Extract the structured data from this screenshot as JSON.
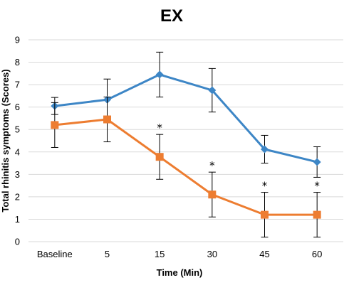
{
  "chart_data": {
    "type": "line",
    "title": "EX",
    "xlabel": "Time (Min)",
    "ylabel": "Total rhinitis symptoms (Scores)",
    "categories": [
      "Baseline",
      "5",
      "15",
      "30",
      "45",
      "60"
    ],
    "ylim": [
      0,
      9
    ],
    "yticks": [
      0,
      1,
      2,
      3,
      4,
      5,
      6,
      7,
      8,
      9
    ],
    "grid": true,
    "legend": "none",
    "series": [
      {
        "color": "#3d86c6",
        "marker": "diamond",
        "values": [
          6.05,
          6.33,
          7.45,
          6.75,
          4.12,
          3.55
        ],
        "error": [
          0.38,
          0.92,
          1.0,
          0.97,
          0.62,
          0.68
        ]
      },
      {
        "color": "#ed7d31",
        "marker": "square",
        "values": [
          5.2,
          5.45,
          3.78,
          2.1,
          1.2,
          1.2
        ],
        "error": [
          1.0,
          1.0,
          1.0,
          1.0,
          1.0,
          1.0
        ]
      }
    ],
    "annotations": [
      {
        "category": "15",
        "text": "*"
      },
      {
        "category": "30",
        "text": "*"
      },
      {
        "category": "45",
        "text": "*"
      },
      {
        "category": "60",
        "text": "*"
      }
    ]
  }
}
